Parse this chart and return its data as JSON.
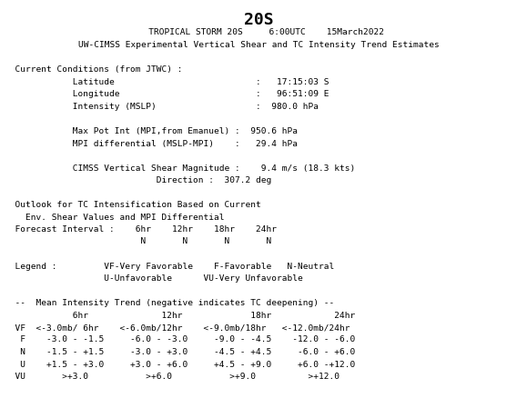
{
  "title": "20S",
  "title_fontsize": 13,
  "header_lines": [
    "   TROPICAL STORM 20S     6:00UTC    15March2022",
    "UW-CIMSS Experimental Vertical Shear and TC Intensity Trend Estimates"
  ],
  "body_lines": [
    "",
    "  Current Conditions (from JTWC) :",
    "             Latitude                           :   17:15:03 S",
    "             Longitude                          :   96:51:09 E",
    "             Intensity (MSLP)                   :  980.0 hPa",
    "",
    "             Max Pot Int (MPI,from Emanuel) :  950.6 hPa",
    "             MPI differential (MSLP-MPI)    :   29.4 hPa",
    "",
    "             CIMSS Vertical Shear Magnitude :    9.4 m/s (18.3 kts)",
    "                             Direction :  307.2 deg",
    "",
    "  Outlook for TC Intensification Based on Current",
    "    Env. Shear Values and MPI Differential",
    "  Forecast Interval :    6hr    12hr    18hr    24hr",
    "                          N       N       N       N",
    "",
    "  Legend :         VF-Very Favorable    F-Favorable   N-Neutral",
    "                   U-Unfavorable      VU-Very Unfavorable",
    "",
    "  --  Mean Intensity Trend (negative indicates TC deepening) --",
    "             6hr              12hr             18hr            24hr",
    "  VF  <-3.0mb/ 6hr    <-6.0mb/12hr    <-9.0mb/18hr   <-12.0mb/24hr",
    "   F    -3.0 - -1.5     -6.0 - -3.0     -9.0 - -4.5    -12.0 - -6.0",
    "   N    -1.5 - +1.5     -3.0 - +3.0     -4.5 - +4.5     -6.0 - +6.0",
    "   U    +1.5 - +3.0     +3.0 - +6.0     +4.5 - +9.0     +6.0 -+12.0",
    "  VU       >+3.0           >+6.0           >+9.0          >+12.0"
  ],
  "font_family": "monospace",
  "font_size": 6.8,
  "header_fontsize": 6.8,
  "bg_color": "#ffffff",
  "text_color": "#000000"
}
